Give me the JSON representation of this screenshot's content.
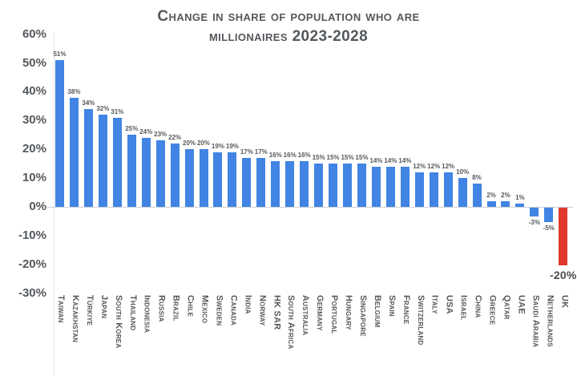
{
  "title": {
    "line1": "Change in share of population who are",
    "line2": "millionaires 2023-2028"
  },
  "chart_data": {
    "type": "bar",
    "title": "Change in share of population who are millionaires 2023-2028",
    "categories": [
      "Taiwan",
      "Kazakhstan",
      "Türkiye",
      "Japan",
      "South Korea",
      "Thailand",
      "Indonesia",
      "Russia",
      "Brazil",
      "Chile",
      "Mexico",
      "Sweden",
      "Canada",
      "India",
      "Norway",
      "HK SAR",
      "South Africa",
      "Australia",
      "Germany",
      "Portugal",
      "Hungary",
      "Singapore",
      "Belgium",
      "Spain",
      "France",
      "Switzerland",
      "Italy",
      "USA",
      "Israel",
      "China",
      "Greece",
      "Qatar",
      "UAE",
      "Saudi Arabia",
      "Netherlands",
      "UK"
    ],
    "values": [
      51,
      38,
      34,
      32,
      31,
      25,
      24,
      23,
      22,
      20,
      20,
      19,
      19,
      17,
      17,
      16,
      16,
      16,
      15,
      15,
      15,
      15,
      14,
      14,
      14,
      12,
      12,
      12,
      10,
      8,
      2,
      2,
      1,
      -3,
      -5,
      -20
    ],
    "value_labels": [
      "51%",
      "38%",
      "34%",
      "32%",
      "31%",
      "25%",
      "24%",
      "23%",
      "22%",
      "20%",
      "20%",
      "19%",
      "19%",
      "17%",
      "17%",
      "16%",
      "16%",
      "16%",
      "15%",
      "15%",
      "15%",
      "15%",
      "14%",
      "14%",
      "14%",
      "12%",
      "12%",
      "12%",
      "10%",
      "8%",
      "2%",
      "2%",
      "1%",
      "-3%",
      "-5%",
      "-20%"
    ],
    "y_ticks": [
      60,
      50,
      40,
      30,
      20,
      10,
      0,
      -10,
      -20,
      -30
    ],
    "y_tick_labels": [
      "60%",
      "50%",
      "40%",
      "30%",
      "20%",
      "10%",
      "0%",
      "-10%",
      "-20%",
      "-30%"
    ],
    "ylim": [
      -30,
      60
    ],
    "xlabel": "",
    "ylabel": "",
    "grid": false,
    "legend": "none",
    "bar_color": "#4184e4",
    "highlight_color": "#e13a2c",
    "highlight_category": "UK",
    "text_color": "#54585c",
    "axis_color": "#dbe2ee"
  }
}
